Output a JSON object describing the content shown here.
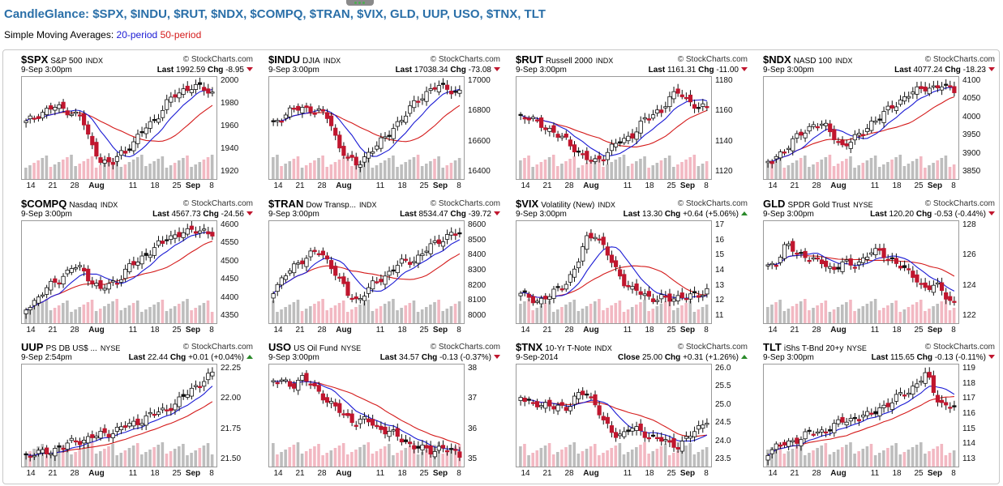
{
  "header": {
    "title": "CandleGlance: $SPX, $INDU, $RUT, $NDX, $COMPQ, $TRAN, $VIX, GLD, UUP, USO, $TNX, TLT",
    "sma_prefix": "Simple Moving Averages:",
    "sma_20": "20-period",
    "sma_50": "50-period"
  },
  "colors": {
    "title": "#2a6fa8",
    "sma20": "#1a1ad4",
    "sma50": "#d41a1a",
    "up_candle": "#ffffff",
    "down_candle": "#c0162e"
  },
  "x_axis": [
    "14",
    "21",
    "28",
    "Aug",
    "11",
    "18",
    "25",
    "Sep",
    "8"
  ],
  "charts": [
    {
      "symbol": "$SPX",
      "name": "S&P 500",
      "exchange": "INDX",
      "brand": "© StockCharts.com",
      "date": "9-Sep 3:00pm",
      "price_label": "Last",
      "price": "1992.59",
      "chg_label": "Chg",
      "chg": "-8.95",
      "direction": "down",
      "y_ticks": [
        "2000",
        "1980",
        "1960",
        "1940",
        "1920"
      ],
      "range": [
        1908,
        2012
      ],
      "shape": "spx"
    },
    {
      "symbol": "$INDU",
      "name": "DJIA",
      "exchange": "INDX",
      "brand": "© StockCharts.com",
      "date": "9-Sep 3:00pm",
      "price_label": "Last",
      "price": "17038.34",
      "chg_label": "Chg",
      "chg": "-73.08",
      "direction": "down",
      "y_ticks": [
        "17000",
        "16800",
        "16600",
        "16400"
      ],
      "range": [
        16320,
        17150
      ],
      "shape": "spx"
    },
    {
      "symbol": "$RUT",
      "name": "Russell 2000",
      "exchange": "INDX",
      "brand": "© StockCharts.com",
      "date": "9-Sep 3:00pm",
      "price_label": "Last",
      "price": "1161.31",
      "chg_label": "Chg",
      "chg": "-11.00",
      "direction": "down",
      "y_ticks": [
        "1180",
        "1160",
        "1140",
        "1120"
      ],
      "range": [
        1105,
        1190
      ],
      "shape": "rut"
    },
    {
      "symbol": "$NDX",
      "name": "NASD 100",
      "exchange": "INDX",
      "brand": "© StockCharts.com",
      "date": "9-Sep 3:00pm",
      "price_label": "Last",
      "price": "4077.24",
      "chg_label": "Chg",
      "chg": "-18.23",
      "direction": "down",
      "y_ticks": [
        "4100",
        "4050",
        "4000",
        "3950",
        "3900",
        "3850"
      ],
      "range": [
        3835,
        4110
      ],
      "shape": "ndx"
    },
    {
      "symbol": "$COMPQ",
      "name": "Nasdaq",
      "exchange": "INDX",
      "brand": "© StockCharts.com",
      "date": "9-Sep 3:00pm",
      "price_label": "Last",
      "price": "4567.73",
      "chg_label": "Chg",
      "chg": "-24.56",
      "direction": "down",
      "y_ticks": [
        "4600",
        "4550",
        "4500",
        "4450",
        "4400",
        "4350"
      ],
      "range": [
        4330,
        4615
      ],
      "shape": "ndx"
    },
    {
      "symbol": "$TRAN",
      "name": "Dow Transp...",
      "exchange": "INDX",
      "brand": "© StockCharts.com",
      "date": "9-Sep 3:00pm",
      "price_label": "Last",
      "price": "8534.47",
      "chg_label": "Chg",
      "chg": "-39.72",
      "direction": "down",
      "y_ticks": [
        "8600",
        "8500",
        "8400",
        "8300",
        "8200",
        "8100",
        "8000"
      ],
      "range": [
        7950,
        8620
      ],
      "shape": "tran"
    },
    {
      "symbol": "$VIX",
      "name": "Volatility (New)",
      "exchange": "INDX",
      "brand": "© StockCharts.com",
      "date": "9-Sep 3:00pm",
      "price_label": "Last",
      "price": "13.30",
      "chg_label": "Chg",
      "chg": "+0.64 (+5.06%)",
      "direction": "up",
      "y_ticks": [
        "17",
        "16",
        "15",
        "14",
        "13",
        "12",
        "11"
      ],
      "range": [
        10.4,
        17.8
      ],
      "shape": "vix"
    },
    {
      "symbol": "GLD",
      "name": "SPDR Gold Trust",
      "exchange": "NYSE",
      "brand": "© StockCharts.com",
      "date": "9-Sep 3:00pm",
      "price_label": "Last",
      "price": "120.20",
      "chg_label": "Chg",
      "chg": "-0.53 (-0.44%)",
      "direction": "down",
      "y_ticks": [
        "128",
        "126",
        "124",
        "122"
      ],
      "range": [
        120,
        130
      ],
      "shape": "gld"
    },
    {
      "symbol": "UUP",
      "name": "PS DB US$ ...",
      "exchange": "NYSE",
      "brand": "© StockCharts.com",
      "date": "9-Sep 2:54pm",
      "price_label": "Last",
      "price": "22.44",
      "chg_label": "Chg",
      "chg": "+0.01 (+0.04%)",
      "direction": "up",
      "y_ticks": [
        "22.25",
        "22.00",
        "21.75",
        "21.50"
      ],
      "range": [
        21.4,
        22.5
      ],
      "shape": "uup"
    },
    {
      "symbol": "USO",
      "name": "US Oil Fund",
      "exchange": "NYSE",
      "brand": "© StockCharts.com",
      "date": "9-Sep 3:00pm",
      "price_label": "Last",
      "price": "34.57",
      "chg_label": "Chg",
      "chg": "-0.13 (-0.37%)",
      "direction": "down",
      "y_ticks": [
        "38",
        "37",
        "36",
        "35"
      ],
      "range": [
        34.3,
        38.3
      ],
      "shape": "uso"
    },
    {
      "symbol": "$TNX",
      "name": "10-Yr T-Note",
      "exchange": "INDX",
      "brand": "© StockCharts.com",
      "date": "9-Sep-2014",
      "price_label": "Close",
      "price": "25.00",
      "chg_label": "Chg",
      "chg": "+0.31 (+1.26%)",
      "direction": "up",
      "y_ticks": [
        "26.0",
        "25.5",
        "25.0",
        "24.5",
        "24.0",
        "23.5"
      ],
      "range": [
        23.0,
        26.2
      ],
      "shape": "tnx"
    },
    {
      "symbol": "TLT",
      "name": "iShs T-Bnd 20+y",
      "exchange": "NYSE",
      "brand": "© StockCharts.com",
      "date": "9-Sep 3:00pm",
      "price_label": "Last",
      "price": "115.65",
      "chg_label": "Chg",
      "chg": "-0.13 (-0.11%)",
      "direction": "down",
      "y_ticks": [
        "119",
        "118",
        "117",
        "116",
        "115",
        "114",
        "113"
      ],
      "range": [
        112.4,
        119.4
      ],
      "shape": "tlt"
    }
  ]
}
